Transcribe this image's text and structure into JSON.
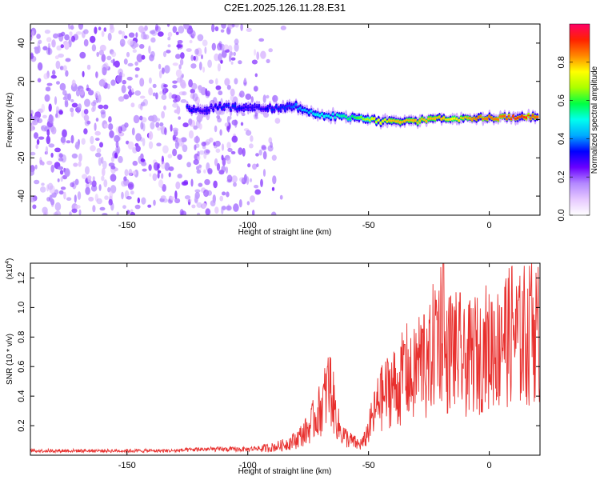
{
  "title": "C2E1.2025.126.11.28.E31",
  "colors": {
    "signal": "#e8302e",
    "noise": "#7a1cff",
    "cbar_grad": [
      "#ffffff",
      "#e6c8ff",
      "#b388ff",
      "#6a00ff",
      "#0000ff",
      "#00aaff",
      "#00ffee",
      "#00ff44",
      "#aaff00",
      "#ffff00",
      "#ff8800",
      "#ff2200",
      "#ff0066"
    ]
  },
  "chart_data": [
    {
      "type": "heatmap",
      "title": "C2E1.2025.126.11.28.E31",
      "xlabel": "Height of straight line (km)",
      "ylabel": "Frequency (Hz)",
      "xlim": [
        -190,
        21
      ],
      "ylim": [
        -50,
        50
      ],
      "xticks": [
        -150,
        -100,
        -50,
        0
      ],
      "xtick_labels": [
        "-150",
        "-100",
        "-50",
        "0"
      ],
      "yticks": [
        -40,
        -20,
        0,
        20,
        40
      ],
      "ytick_labels": [
        "-40",
        "-20",
        "0",
        "20",
        "40"
      ],
      "colorbar": {
        "label": "Normalized spectral amplitude",
        "range": [
          0.0,
          1.0
        ],
        "ticks": [
          0.0,
          0.2,
          0.4,
          0.6,
          0.8
        ],
        "tick_labels": [
          "0.0",
          "0.2",
          "0.4",
          "0.6",
          "0.8"
        ],
        "colormap": "rainbow"
      },
      "ridge_x": [
        -125,
        -120,
        -115,
        -110,
        -105,
        -100,
        -95,
        -90,
        -85,
        -80,
        -75,
        -70,
        -65,
        -60,
        -55,
        -50,
        -45,
        -40,
        -35,
        -30,
        -25,
        -20,
        -15,
        -10,
        -5,
        0,
        5,
        10,
        15,
        20
      ],
      "ridge_freq": [
        6,
        5,
        6,
        7,
        6,
        7,
        6,
        6,
        6,
        7,
        4,
        2,
        2,
        1,
        1,
        0,
        -1,
        -1,
        -1,
        -1,
        0,
        1,
        0,
        1,
        1,
        1,
        1,
        1,
        1,
        2
      ],
      "ridge_amplitude": [
        0.35,
        0.3,
        0.3,
        0.35,
        0.35,
        0.3,
        0.3,
        0.35,
        0.35,
        0.4,
        0.45,
        0.5,
        0.5,
        0.55,
        0.6,
        0.7,
        0.75,
        0.8,
        0.8,
        0.8,
        0.8,
        0.8,
        0.75,
        0.8,
        0.85,
        0.85,
        0.85,
        0.9,
        0.9,
        0.85
      ],
      "noise_region_x": [
        -190,
        -85
      ]
    },
    {
      "type": "line",
      "xlabel": "Height of straight line (km)",
      "ylabel": "SNR (10 * v/v)",
      "y_multiplier": "(x10",
      "y_multiplier_exp": "4",
      "y_multiplier_close": ")",
      "xlim": [
        -190,
        21
      ],
      "ylim": [
        0,
        1.3
      ],
      "xticks": [
        -150,
        -100,
        -50,
        0
      ],
      "xtick_labels": [
        "-150",
        "-100",
        "-50",
        "0"
      ],
      "yticks": [
        0.2,
        0.4,
        0.6,
        0.8,
        1.0,
        1.2
      ],
      "ytick_labels": [
        "0.2",
        "0.4",
        "0.6",
        "0.8",
        "1.0",
        "1.2"
      ],
      "series": [
        {
          "x": [
            -190,
            -170,
            -150,
            -130,
            -120,
            -110,
            -100,
            -95,
            -90,
            -85,
            -80,
            -75,
            -72,
            -70,
            -68,
            -66,
            -64,
            -62,
            -60,
            -58,
            -56,
            -54,
            -52,
            -50,
            -48,
            -46,
            -44,
            -42,
            -40,
            -38,
            -36,
            -34,
            -32,
            -30,
            -28,
            -26,
            -24,
            -22,
            -20,
            -18,
            -16,
            -14,
            -12,
            -10,
            -8,
            -6,
            -4,
            -2,
            0,
            2,
            4,
            6,
            8,
            10,
            12,
            14,
            16,
            18,
            20
          ],
          "y": [
            0.03,
            0.03,
            0.03,
            0.03,
            0.04,
            0.04,
            0.04,
            0.05,
            0.06,
            0.08,
            0.12,
            0.2,
            0.3,
            0.35,
            0.45,
            0.55,
            0.35,
            0.2,
            0.15,
            0.12,
            0.1,
            0.08,
            0.1,
            0.2,
            0.3,
            0.4,
            0.45,
            0.5,
            0.55,
            0.5,
            0.6,
            0.65,
            0.55,
            0.7,
            0.75,
            0.6,
            0.8,
            0.9,
            1.0,
            0.7,
            0.85,
            0.8,
            0.75,
            0.7,
            0.75,
            0.8,
            0.75,
            0.85,
            0.8,
            0.9,
            0.8,
            0.95,
            0.9,
            1.0,
            0.85,
            0.95,
            0.9,
            1.0,
            0.95
          ],
          "peaks_x": [
            -67,
            -45,
            -35,
            -27,
            -22,
            -19,
            -12,
            -2,
            5,
            12,
            17,
            20
          ],
          "peaks_y": [
            0.6,
            0.55,
            0.75,
            0.95,
            1.05,
            1.3,
            1.1,
            0.9,
            1.0,
            1.05,
            1.08,
            1.0
          ]
        }
      ]
    }
  ]
}
